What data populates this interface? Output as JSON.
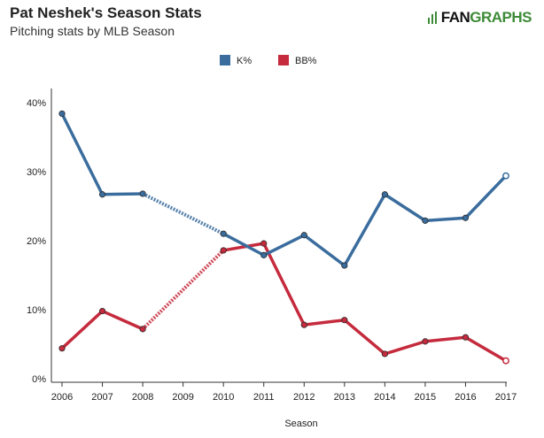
{
  "header": {
    "title": "Pat Neshek's Season Stats",
    "subtitle": "Pitching stats by MLB Season",
    "brand_left": "FAN",
    "brand_right": "GRAPHS"
  },
  "colors": {
    "k_pct": "#3a6d9d",
    "bb_pct": "#c52b3d",
    "axis": "#333333",
    "brand_green": "#3d8b37"
  },
  "chart_data": {
    "type": "line",
    "title": "Pat Neshek's Season Stats",
    "subtitle": "Pitching stats by MLB Season",
    "xlabel": "Season",
    "ylabel": "",
    "x": [
      2006,
      2007,
      2008,
      2009,
      2010,
      2011,
      2012,
      2013,
      2014,
      2015,
      2016,
      2017
    ],
    "x_tick_labels": [
      "2006",
      "2007",
      "2008",
      "2009",
      "2010",
      "2011",
      "2012",
      "2013",
      "2014",
      "2015",
      "2016",
      "2017"
    ],
    "y_ticks": [
      0,
      10,
      20,
      30,
      40
    ],
    "y_tick_labels": [
      "0%",
      "10%",
      "20%",
      "30%",
      "40%"
    ],
    "ylim": [
      0,
      42
    ],
    "legend_position": "top-center",
    "grid": false,
    "series": [
      {
        "name": "K%",
        "color": "#3a6d9d",
        "points": [
          {
            "x": 2006,
            "y": 38.4
          },
          {
            "x": 2007,
            "y": 26.7
          },
          {
            "x": 2008,
            "y": 26.8
          },
          {
            "x": 2010,
            "y": 21.0
          },
          {
            "x": 2011,
            "y": 17.9
          },
          {
            "x": 2012,
            "y": 20.8
          },
          {
            "x": 2013,
            "y": 16.4
          },
          {
            "x": 2014,
            "y": 26.7
          },
          {
            "x": 2015,
            "y": 22.9
          },
          {
            "x": 2016,
            "y": 23.3
          },
          {
            "x": 2017,
            "y": 29.4,
            "open": true
          }
        ]
      },
      {
        "name": "BB%",
        "color": "#c52b3d",
        "points": [
          {
            "x": 2006,
            "y": 4.4
          },
          {
            "x": 2007,
            "y": 9.8
          },
          {
            "x": 2008,
            "y": 7.2
          },
          {
            "x": 2010,
            "y": 18.6
          },
          {
            "x": 2011,
            "y": 19.6
          },
          {
            "x": 2012,
            "y": 7.8
          },
          {
            "x": 2013,
            "y": 8.5
          },
          {
            "x": 2014,
            "y": 3.6
          },
          {
            "x": 2015,
            "y": 5.4
          },
          {
            "x": 2016,
            "y": 6.0
          },
          {
            "x": 2017,
            "y": 2.6,
            "open": true
          }
        ]
      }
    ]
  }
}
